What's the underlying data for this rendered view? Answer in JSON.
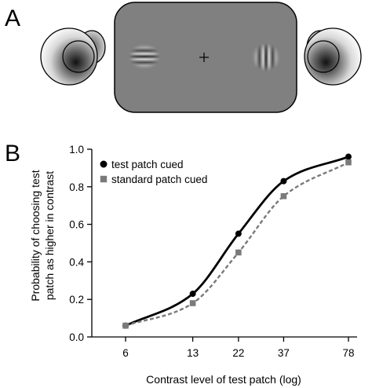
{
  "panels": {
    "a_label": "A",
    "b_label": "B"
  },
  "colors": {
    "screen": "#808080",
    "screen_border": "#000000",
    "test_series": "#000000",
    "standard_series": "#7a7a7a"
  },
  "chart_data": {
    "type": "line",
    "xlabel": "Contrast level of test patch (log)",
    "ylabel_lines": [
      "Probability of choosing test",
      "patch as higher in contrast"
    ],
    "x_scale": "log",
    "x_ticks": [
      6,
      13,
      22,
      37,
      78
    ],
    "x_tick_labels": [
      "6",
      "13",
      "22",
      "37",
      "78"
    ],
    "xlim": [
      5,
      80
    ],
    "ylim": [
      0,
      1.0
    ],
    "y_ticks": [
      0.0,
      0.2,
      0.4,
      0.6,
      0.8,
      1.0
    ],
    "y_tick_labels": [
      "0.0",
      "0.2",
      "0.4",
      "0.6",
      "0.8",
      "1.0"
    ],
    "grid": false,
    "legend_position": "top-left",
    "series": [
      {
        "name": "test patch cued",
        "marker": "circle",
        "line_style": "solid",
        "x": [
          6,
          13,
          22,
          37,
          78
        ],
        "y": [
          0.06,
          0.23,
          0.55,
          0.83,
          0.96
        ]
      },
      {
        "name": "standard patch cued",
        "marker": "square",
        "line_style": "dashed",
        "x": [
          6,
          13,
          22,
          37,
          78
        ],
        "y": [
          0.06,
          0.18,
          0.45,
          0.75,
          0.93
        ]
      }
    ]
  }
}
